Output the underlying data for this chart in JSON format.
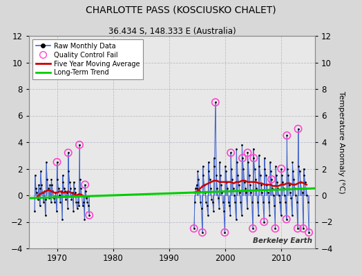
{
  "title": "CHARLOTTE PASS (KOSCIUSKO CHALET)",
  "subtitle": "36.434 S, 148.333 E (Australia)",
  "ylabel": "Temperature Anomaly (°C)",
  "watermark": "Berkeley Earth",
  "ylim": [
    -4,
    12
  ],
  "yticks": [
    -4,
    -2,
    0,
    2,
    4,
    6,
    8,
    10,
    12
  ],
  "xlim": [
    1965,
    2016
  ],
  "xticks": [
    1970,
    1980,
    1990,
    2000,
    2010
  ],
  "fig_bg_color": "#d8d8d8",
  "plot_bg_color": "#e8e8e8",
  "grid_color": "#bbbbcc",
  "raw_color": "#4466cc",
  "raw_marker_color": "#000000",
  "qc_fail_color": "#ff44cc",
  "moving_avg_color": "#cc0000",
  "trend_color": "#00cc00",
  "raw_data": [
    [
      1966.0,
      -1.2
    ],
    [
      1966.08,
      1.5
    ],
    [
      1966.25,
      0.5
    ],
    [
      1966.42,
      0.2
    ],
    [
      1966.58,
      -0.3
    ],
    [
      1966.75,
      0.8
    ],
    [
      1966.92,
      -0.8
    ],
    [
      1967.0,
      0.5
    ],
    [
      1967.08,
      1.8
    ],
    [
      1967.25,
      0.8
    ],
    [
      1967.42,
      0.2
    ],
    [
      1967.58,
      -0.5
    ],
    [
      1967.75,
      0.3
    ],
    [
      1967.92,
      -1.5
    ],
    [
      1968.0,
      -0.3
    ],
    [
      1968.08,
      2.5
    ],
    [
      1968.25,
      1.2
    ],
    [
      1968.42,
      0.5
    ],
    [
      1968.58,
      -0.2
    ],
    [
      1968.75,
      0.8
    ],
    [
      1968.92,
      -0.5
    ],
    [
      1969.0,
      1.2
    ],
    [
      1969.08,
      0.8
    ],
    [
      1969.25,
      0.3
    ],
    [
      1969.42,
      -0.2
    ],
    [
      1969.58,
      -0.5
    ],
    [
      1969.75,
      0.2
    ],
    [
      1969.92,
      -1.2
    ],
    [
      1970.0,
      2.5
    ],
    [
      1970.08,
      1.2
    ],
    [
      1970.25,
      0.5
    ],
    [
      1970.42,
      0.0
    ],
    [
      1970.58,
      -0.5
    ],
    [
      1970.75,
      0.3
    ],
    [
      1970.92,
      -1.8
    ],
    [
      1971.0,
      1.5
    ],
    [
      1971.08,
      1.0
    ],
    [
      1971.25,
      0.5
    ],
    [
      1971.42,
      0.3
    ],
    [
      1971.58,
      -0.3
    ],
    [
      1971.75,
      0.2
    ],
    [
      1971.92,
      -1.0
    ],
    [
      1972.0,
      3.2
    ],
    [
      1972.08,
      1.8
    ],
    [
      1972.25,
      1.0
    ],
    [
      1972.42,
      0.5
    ],
    [
      1972.58,
      -0.3
    ],
    [
      1972.75,
      0.2
    ],
    [
      1972.92,
      -1.2
    ],
    [
      1973.0,
      1.0
    ],
    [
      1973.08,
      0.5
    ],
    [
      1973.25,
      0.2
    ],
    [
      1973.42,
      -0.5
    ],
    [
      1973.58,
      -1.0
    ],
    [
      1973.75,
      -0.5
    ],
    [
      1973.92,
      -0.8
    ],
    [
      1974.0,
      3.8
    ],
    [
      1974.08,
      1.2
    ],
    [
      1974.25,
      0.5
    ],
    [
      1974.42,
      0.0
    ],
    [
      1974.58,
      -0.8
    ],
    [
      1974.75,
      -0.5
    ],
    [
      1974.92,
      -1.8
    ],
    [
      1975.0,
      0.8
    ],
    [
      1975.08,
      0.3
    ],
    [
      1975.25,
      -0.2
    ],
    [
      1975.42,
      -0.5
    ],
    [
      1975.58,
      -0.8
    ],
    [
      1975.75,
      -1.5
    ],
    [
      1994.42,
      -2.5
    ],
    [
      1994.58,
      -0.5
    ],
    [
      1994.75,
      0.5
    ],
    [
      1994.92,
      0.8
    ],
    [
      1995.0,
      0.5
    ],
    [
      1995.08,
      1.8
    ],
    [
      1995.25,
      1.2
    ],
    [
      1995.42,
      0.3
    ],
    [
      1995.58,
      -0.5
    ],
    [
      1995.75,
      -1.0
    ],
    [
      1995.92,
      -2.8
    ],
    [
      1996.0,
      2.2
    ],
    [
      1996.08,
      1.5
    ],
    [
      1996.25,
      0.8
    ],
    [
      1996.42,
      0.2
    ],
    [
      1996.58,
      -0.5
    ],
    [
      1996.75,
      -0.8
    ],
    [
      1996.92,
      -1.5
    ],
    [
      1997.0,
      2.5
    ],
    [
      1997.08,
      1.8
    ],
    [
      1997.25,
      1.2
    ],
    [
      1997.42,
      0.5
    ],
    [
      1997.58,
      -0.3
    ],
    [
      1997.75,
      -0.5
    ],
    [
      1997.92,
      -1.2
    ],
    [
      1998.0,
      2.8
    ],
    [
      1998.08,
      2.2
    ],
    [
      1998.25,
      7.0
    ],
    [
      1998.42,
      1.5
    ],
    [
      1998.58,
      0.5
    ],
    [
      1998.75,
      -0.2
    ],
    [
      1998.92,
      -1.0
    ],
    [
      1999.0,
      2.5
    ],
    [
      1999.08,
      1.5
    ],
    [
      1999.25,
      0.8
    ],
    [
      1999.42,
      0.2
    ],
    [
      1999.58,
      -0.5
    ],
    [
      1999.75,
      -1.2
    ],
    [
      1999.92,
      -2.8
    ],
    [
      2000.0,
      2.2
    ],
    [
      2000.08,
      1.8
    ],
    [
      2000.25,
      1.0
    ],
    [
      2000.42,
      0.5
    ],
    [
      2000.58,
      -0.5
    ],
    [
      2000.75,
      -0.8
    ],
    [
      2000.92,
      -1.5
    ],
    [
      2001.0,
      3.2
    ],
    [
      2001.08,
      2.0
    ],
    [
      2001.25,
      1.2
    ],
    [
      2001.42,
      0.5
    ],
    [
      2001.58,
      0.0
    ],
    [
      2001.75,
      -0.5
    ],
    [
      2001.92,
      -1.8
    ],
    [
      2002.0,
      3.5
    ],
    [
      2002.08,
      2.5
    ],
    [
      2002.25,
      1.5
    ],
    [
      2002.42,
      0.8
    ],
    [
      2002.58,
      0.2
    ],
    [
      2002.75,
      -0.5
    ],
    [
      2002.92,
      -1.5
    ],
    [
      2003.0,
      3.8
    ],
    [
      2003.08,
      2.8
    ],
    [
      2003.25,
      2.0
    ],
    [
      2003.42,
      1.0
    ],
    [
      2003.58,
      0.5
    ],
    [
      2003.75,
      0.2
    ],
    [
      2003.92,
      -1.0
    ],
    [
      2004.0,
      3.2
    ],
    [
      2004.08,
      2.5
    ],
    [
      2004.25,
      1.5
    ],
    [
      2004.42,
      0.8
    ],
    [
      2004.58,
      0.2
    ],
    [
      2004.75,
      -0.5
    ],
    [
      2004.92,
      -2.5
    ],
    [
      2005.0,
      3.5
    ],
    [
      2005.08,
      2.8
    ],
    [
      2005.25,
      2.0
    ],
    [
      2005.42,
      1.2
    ],
    [
      2005.58,
      0.5
    ],
    [
      2005.75,
      -0.5
    ],
    [
      2005.92,
      -1.5
    ],
    [
      2006.0,
      3.0
    ],
    [
      2006.08,
      2.2
    ],
    [
      2006.25,
      1.5
    ],
    [
      2006.42,
      0.8
    ],
    [
      2006.58,
      0.2
    ],
    [
      2006.75,
      -0.5
    ],
    [
      2006.92,
      -2.0
    ],
    [
      2007.0,
      2.8
    ],
    [
      2007.08,
      2.0
    ],
    [
      2007.25,
      1.5
    ],
    [
      2007.42,
      0.8
    ],
    [
      2007.58,
      0.2
    ],
    [
      2007.75,
      -0.5
    ],
    [
      2007.92,
      -1.5
    ],
    [
      2008.0,
      2.5
    ],
    [
      2008.08,
      1.8
    ],
    [
      2008.25,
      1.2
    ],
    [
      2008.42,
      0.5
    ],
    [
      2008.58,
      0.0
    ],
    [
      2008.75,
      -0.8
    ],
    [
      2008.92,
      -2.5
    ],
    [
      2009.0,
      2.2
    ],
    [
      2009.08,
      1.5
    ],
    [
      2009.25,
      1.0
    ],
    [
      2009.42,
      0.5
    ],
    [
      2009.58,
      0.0
    ],
    [
      2009.75,
      -0.5
    ],
    [
      2009.92,
      -1.5
    ],
    [
      2010.0,
      2.0
    ],
    [
      2010.08,
      1.5
    ],
    [
      2010.25,
      1.0
    ],
    [
      2010.42,
      0.5
    ],
    [
      2010.58,
      0.0
    ],
    [
      2010.75,
      -0.5
    ],
    [
      2010.92,
      -1.8
    ],
    [
      2011.0,
      4.5
    ],
    [
      2011.08,
      2.0
    ],
    [
      2011.25,
      1.5
    ],
    [
      2011.42,
      0.8
    ],
    [
      2011.58,
      0.2
    ],
    [
      2011.75,
      -0.2
    ],
    [
      2011.92,
      -1.5
    ],
    [
      2012.0,
      2.5
    ],
    [
      2012.08,
      1.8
    ],
    [
      2012.25,
      1.2
    ],
    [
      2012.42,
      0.5
    ],
    [
      2012.58,
      0.0
    ],
    [
      2012.75,
      -0.5
    ],
    [
      2012.92,
      -2.5
    ],
    [
      2013.0,
      5.0
    ],
    [
      2013.08,
      2.2
    ],
    [
      2013.25,
      1.8
    ],
    [
      2013.42,
      1.0
    ],
    [
      2013.58,
      0.5
    ],
    [
      2013.75,
      0.2
    ],
    [
      2013.92,
      -2.5
    ],
    [
      2014.0,
      2.0
    ],
    [
      2014.08,
      1.5
    ],
    [
      2014.25,
      1.0
    ],
    [
      2014.42,
      0.5
    ],
    [
      2014.58,
      0.0
    ],
    [
      2014.75,
      -0.5
    ],
    [
      2014.92,
      -2.8
    ]
  ],
  "qc_fail_points": [
    [
      1970.0,
      2.5
    ],
    [
      1972.0,
      3.2
    ],
    [
      1974.0,
      3.8
    ],
    [
      1975.0,
      0.8
    ],
    [
      1975.75,
      -1.5
    ],
    [
      1994.42,
      -2.5
    ],
    [
      1995.92,
      -2.8
    ],
    [
      1998.25,
      7.0
    ],
    [
      1999.92,
      -2.8
    ],
    [
      2001.0,
      3.2
    ],
    [
      2003.08,
      2.8
    ],
    [
      2004.0,
      3.2
    ],
    [
      2004.92,
      -2.5
    ],
    [
      2005.08,
      2.8
    ],
    [
      2006.92,
      -2.0
    ],
    [
      2008.25,
      1.2
    ],
    [
      2008.92,
      -2.5
    ],
    [
      2010.0,
      2.0
    ],
    [
      2010.92,
      -1.8
    ],
    [
      2011.0,
      4.5
    ],
    [
      2012.92,
      -2.5
    ],
    [
      2013.0,
      5.0
    ],
    [
      2013.92,
      -2.5
    ],
    [
      2014.92,
      -2.8
    ]
  ],
  "moving_avg_seg1": [
    [
      1966.5,
      -0.1
    ],
    [
      1967.0,
      0.1
    ],
    [
      1967.5,
      0.2
    ],
    [
      1968.0,
      0.3
    ],
    [
      1968.5,
      0.4
    ],
    [
      1969.0,
      0.3
    ],
    [
      1969.5,
      0.2
    ],
    [
      1970.0,
      0.2
    ],
    [
      1970.5,
      0.3
    ],
    [
      1971.0,
      0.2
    ],
    [
      1971.5,
      0.2
    ],
    [
      1972.0,
      0.3
    ],
    [
      1972.5,
      0.2
    ],
    [
      1973.0,
      0.1
    ],
    [
      1973.5,
      0.0
    ],
    [
      1974.0,
      0.1
    ],
    [
      1974.5,
      0.0
    ],
    [
      1975.0,
      -0.1
    ],
    [
      1975.5,
      -0.1
    ]
  ],
  "moving_avg_seg2": [
    [
      1994.5,
      0.2
    ],
    [
      1995.0,
      0.3
    ],
    [
      1995.5,
      0.5
    ],
    [
      1996.0,
      0.7
    ],
    [
      1996.5,
      0.8
    ],
    [
      1997.0,
      0.9
    ],
    [
      1997.5,
      1.0
    ],
    [
      1998.0,
      1.1
    ],
    [
      1998.5,
      1.1
    ],
    [
      1999.0,
      1.0
    ],
    [
      1999.5,
      1.0
    ],
    [
      2000.0,
      1.0
    ],
    [
      2000.5,
      1.0
    ],
    [
      2001.0,
      1.0
    ],
    [
      2001.5,
      0.9
    ],
    [
      2002.0,
      1.0
    ],
    [
      2002.5,
      1.0
    ],
    [
      2003.0,
      1.1
    ],
    [
      2003.5,
      1.1
    ],
    [
      2004.0,
      1.0
    ],
    [
      2004.5,
      1.0
    ],
    [
      2005.0,
      1.0
    ],
    [
      2005.5,
      1.0
    ],
    [
      2006.0,
      0.9
    ],
    [
      2006.5,
      0.9
    ],
    [
      2007.0,
      0.8
    ],
    [
      2007.5,
      0.8
    ],
    [
      2008.0,
      0.8
    ],
    [
      2008.5,
      0.7
    ],
    [
      2009.0,
      0.7
    ],
    [
      2009.5,
      0.7
    ],
    [
      2010.0,
      0.8
    ],
    [
      2010.5,
      0.8
    ],
    [
      2011.0,
      0.9
    ],
    [
      2011.5,
      0.9
    ],
    [
      2012.0,
      0.8
    ],
    [
      2012.5,
      0.8
    ],
    [
      2013.0,
      0.9
    ],
    [
      2013.5,
      1.0
    ],
    [
      2014.0,
      0.9
    ],
    [
      2014.5,
      0.8
    ]
  ],
  "trend_x": [
    1965,
    2016
  ],
  "trend_y": [
    -0.22,
    0.52
  ]
}
